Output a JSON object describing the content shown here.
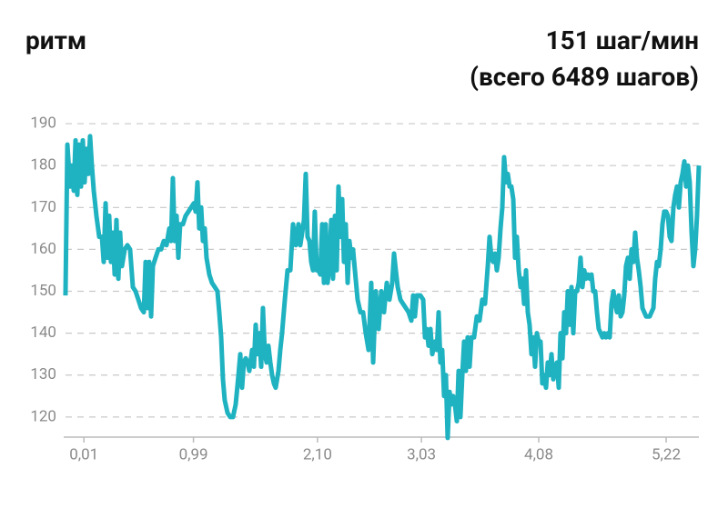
{
  "chart_data": {
    "type": "line",
    "title": "ритм",
    "subtitle": [
      "151 шаг/мин",
      "(всего 6489 шагов)"
    ],
    "color": "#1fb2c0",
    "grid": true,
    "xlim": [
      -0.171,
      5.513
    ],
    "ylim": [
      115.2,
      192.4
    ],
    "yticks": [
      120,
      130,
      140,
      150,
      160,
      170,
      180,
      190
    ],
    "xticks": [
      {
        "value": 0.01,
        "label": "0,01"
      },
      {
        "value": 0.99,
        "label": "0,99"
      },
      {
        "value": 2.1,
        "label": "2,10"
      },
      {
        "value": 3.03,
        "label": "3,03"
      },
      {
        "value": 4.08,
        "label": "4,08"
      },
      {
        "value": 5.22,
        "label": "5,22"
      }
    ],
    "x": [
      -0.155,
      -0.138,
      -0.114,
      -0.098,
      -0.081,
      -0.065,
      -0.049,
      -0.033,
      -0.016,
      0,
      0.016,
      0.033,
      0.049,
      0.065,
      0.081,
      0.098,
      0.122,
      0.147,
      0.171,
      0.187,
      0.204,
      0.22,
      0.236,
      0.252,
      0.269,
      0.285,
      0.301,
      0.318,
      0.334,
      0.35,
      0.375,
      0.399,
      0.423,
      0.448,
      0.472,
      0.497,
      0.521,
      0.546,
      0.562,
      0.578,
      0.594,
      0.611,
      0.627,
      0.651,
      0.676,
      0.7,
      0.725,
      0.749,
      0.774,
      0.79,
      0.806,
      0.822,
      0.839,
      0.855,
      0.871,
      0.896,
      0.92,
      0.945,
      0.969,
      0.993,
      1.01,
      1.026,
      1.042,
      1.059,
      1.075,
      1.091,
      1.107,
      1.132,
      1.156,
      1.181,
      1.205,
      1.221,
      1.238,
      1.254,
      1.27,
      1.295,
      1.319,
      1.344,
      1.368,
      1.393,
      1.409,
      1.425,
      1.441,
      1.458,
      1.474,
      1.49,
      1.515,
      1.531,
      1.547,
      1.564,
      1.58,
      1.596,
      1.612,
      1.629,
      1.645,
      1.661,
      1.678,
      1.694,
      1.71,
      1.726,
      1.751,
      1.767,
      1.783,
      1.808,
      1.832,
      1.857,
      1.881,
      1.906,
      1.93,
      1.946,
      1.963,
      1.979,
      1.995,
      2.011,
      2.028,
      2.044,
      2.06,
      2.076,
      2.093,
      2.109,
      2.125,
      2.142,
      2.158,
      2.174,
      2.19,
      2.207,
      2.223,
      2.239,
      2.256,
      2.272,
      2.288,
      2.304,
      2.321,
      2.337,
      2.353,
      2.37,
      2.386,
      2.402,
      2.418,
      2.435,
      2.459,
      2.484,
      2.508,
      2.532,
      2.557,
      2.581,
      2.598,
      2.622,
      2.647,
      2.671,
      2.695,
      2.72,
      2.744,
      2.769,
      2.785,
      2.801,
      2.818,
      2.842,
      2.866,
      2.891,
      2.915,
      2.94,
      2.956,
      2.972,
      2.989,
      3.021,
      3.046,
      3.062,
      3.078,
      3.094,
      3.111,
      3.127,
      3.151,
      3.168,
      3.184,
      3.2,
      3.216,
      3.233,
      3.249,
      3.265,
      3.282,
      3.298,
      3.314,
      3.33,
      3.347,
      3.363,
      3.379,
      3.396,
      3.412,
      3.428,
      3.444,
      3.461,
      3.477,
      3.501,
      3.526,
      3.55,
      3.575,
      3.599,
      3.624,
      3.64,
      3.656,
      3.672,
      3.689,
      3.705,
      3.721,
      3.738,
      3.754,
      3.77,
      3.787,
      3.803,
      3.819,
      3.835,
      3.852,
      3.868,
      3.884,
      3.901,
      3.917,
      3.933,
      3.949,
      3.966,
      3.982,
      3.998,
      4.015,
      4.031,
      4.047,
      4.063,
      4.08,
      4.096,
      4.112,
      4.129,
      4.145,
      4.161,
      4.177,
      4.194,
      4.21,
      4.226,
      4.243,
      4.259,
      4.275,
      4.292,
      4.308,
      4.324,
      4.34,
      4.357,
      4.373,
      4.389,
      4.406,
      4.422,
      4.438,
      4.454,
      4.471,
      4.487,
      4.503,
      4.52,
      4.536,
      4.552,
      4.568,
      4.585,
      4.601,
      4.617,
      4.634,
      4.65,
      4.666,
      4.682,
      4.699,
      4.715,
      4.731,
      4.748,
      4.764,
      4.78,
      4.796,
      4.813,
      4.829,
      4.845,
      4.861,
      4.878,
      4.894,
      4.91,
      4.927,
      4.943,
      4.959,
      4.975,
      4.992,
      5.008,
      5.024,
      5.041,
      5.073,
      5.089,
      5.106,
      5.122,
      5.138,
      5.154,
      5.171,
      5.187,
      5.203,
      5.22,
      5.236,
      5.252,
      5.268,
      5.285,
      5.301,
      5.317,
      5.334,
      5.35,
      5.366,
      5.383,
      5.399,
      5.415,
      5.431,
      5.448,
      5.464,
      5.48,
      5.496,
      5.513
    ],
    "values": [
      149,
      185,
      175,
      180,
      174,
      186,
      173,
      185,
      175,
      186,
      176,
      184,
      178,
      187,
      180,
      174,
      168,
      163,
      163,
      157,
      171,
      158,
      168,
      157,
      164,
      154,
      167,
      153,
      164,
      156,
      160,
      161,
      160,
      151,
      150,
      148,
      146,
      145,
      157,
      146,
      157,
      144,
      156,
      158,
      160,
      160,
      162,
      161,
      165,
      162,
      177,
      162,
      168,
      158,
      166,
      166,
      168,
      169,
      170,
      171,
      169,
      176,
      165,
      170,
      162,
      165,
      158,
      154,
      152,
      151,
      150,
      145,
      139,
      129,
      124,
      121,
      120,
      120,
      123,
      130,
      135,
      127,
      133,
      134,
      133,
      131,
      136,
      132,
      142,
      135,
      140,
      132,
      146,
      135,
      133,
      137,
      133,
      130,
      128,
      127,
      131,
      136,
      140,
      148,
      155,
      155,
      166,
      161,
      166,
      161,
      164,
      167,
      178,
      163,
      162,
      157,
      155,
      169,
      155,
      155,
      154,
      166,
      152,
      166,
      152,
      156,
      167,
      153,
      168,
      155,
      175,
      163,
      172,
      157,
      166,
      152,
      162,
      158,
      160,
      155,
      148,
      145,
      145,
      140,
      136,
      152,
      133,
      150,
      141,
      150,
      145,
      152,
      148,
      152,
      159,
      155,
      151,
      148,
      147,
      146,
      145,
      143,
      149,
      144,
      149,
      149,
      148,
      139,
      141,
      137,
      141,
      135,
      138,
      136,
      145,
      133,
      136,
      125,
      130,
      115,
      126,
      123,
      125,
      123,
      119,
      131,
      120,
      130,
      138,
      131,
      139,
      132,
      139,
      139,
      144,
      143,
      148,
      147,
      156,
      163,
      158,
      157,
      159,
      155,
      158,
      165,
      170,
      182,
      176,
      178,
      175,
      175,
      172,
      158,
      163,
      155,
      151,
      153,
      147,
      155,
      145,
      142,
      135,
      139,
      132,
      140,
      138,
      138,
      128,
      130,
      127,
      133,
      130,
      135,
      129,
      132,
      133,
      127,
      140,
      134,
      145,
      140,
      150,
      142,
      151,
      140,
      150,
      150,
      152,
      158,
      151,
      155,
      153,
      154,
      153,
      154,
      150,
      150,
      145,
      141,
      140,
      139,
      140,
      139,
      140,
      139,
      147,
      150,
      147,
      145,
      149,
      144,
      145,
      149,
      156,
      158,
      153,
      160,
      157,
      164,
      158,
      155,
      151,
      146,
      145,
      144,
      144,
      145,
      146,
      153,
      157,
      156,
      160,
      166,
      169,
      169,
      168,
      163,
      162,
      170,
      173,
      175,
      170,
      176,
      178,
      181,
      175,
      180,
      176,
      164,
      156,
      160,
      168,
      180
    ]
  }
}
